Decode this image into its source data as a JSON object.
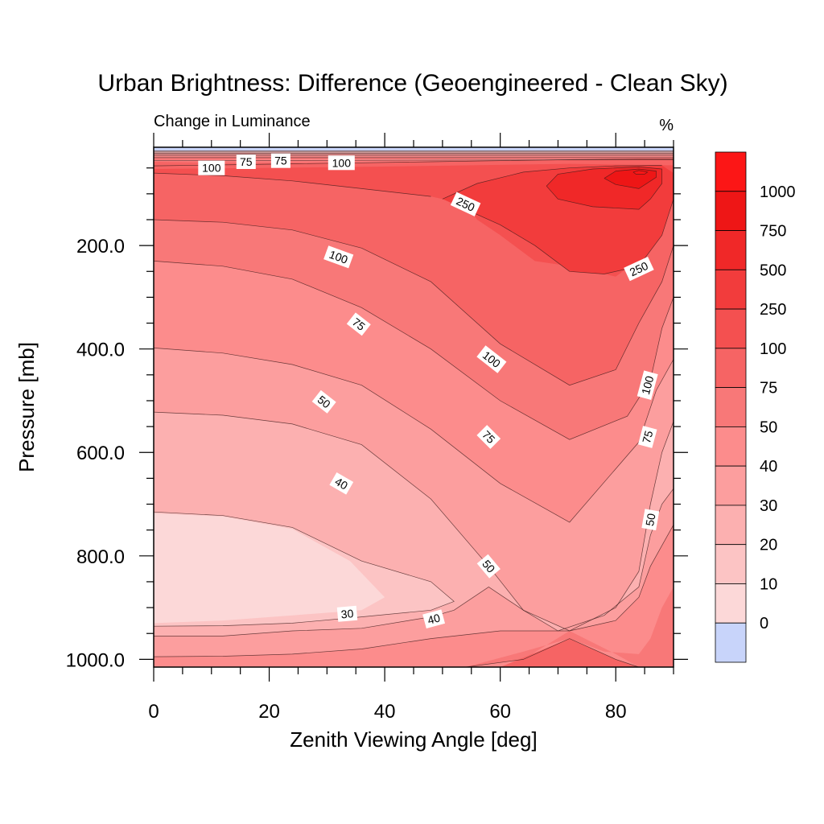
{
  "chart_data": {
    "type": "contour",
    "title": "Urban Brightness: Difference (Geoengineered - Clean Sky)",
    "subtitle_left": "Change in Luminance",
    "units": "%",
    "xlabel": "Zenith Viewing Angle [deg]",
    "ylabel": "Pressure [mb]",
    "xlim": [
      0,
      90
    ],
    "ylim": [
      1015,
      10
    ],
    "x_ticks": [
      0,
      20,
      40,
      60,
      80
    ],
    "x_tick_labels": [
      "0",
      "20",
      "40",
      "60",
      "80"
    ],
    "y_ticks": [
      200,
      400,
      600,
      800,
      1000
    ],
    "y_tick_labels": [
      "200.0",
      "400.0",
      "600.0",
      "800.0",
      "1000.0"
    ],
    "contour_levels": [
      0,
      10,
      20,
      30,
      40,
      50,
      75,
      100,
      250,
      500,
      750,
      1000
    ],
    "colorbar_labels": [
      "0",
      "10",
      "20",
      "30",
      "40",
      "50",
      "75",
      "100",
      "250",
      "500",
      "750",
      "1000"
    ],
    "colors": [
      "#c8d4fa",
      "#fcd8d8",
      "#fcc4c4",
      "#fcb0b0",
      "#fc9e9e",
      "#fc8c8c",
      "#f87878",
      "#f66464",
      "#f45050",
      "#f23c3c",
      "#f02828",
      "#ee1616",
      "#fc1616"
    ],
    "contour_line_labels": [
      {
        "text": "100",
        "x": 10,
        "p": 50,
        "angle": 0
      },
      {
        "text": "75",
        "x": 16,
        "p": 38,
        "angle": 0
      },
      {
        "text": "75",
        "x": 22,
        "p": 36,
        "angle": 0
      },
      {
        "text": "100",
        "x": 32.5,
        "p": 40,
        "angle": 0
      },
      {
        "text": "250",
        "x": 54,
        "p": 120,
        "angle": 25
      },
      {
        "text": "250",
        "x": 84,
        "p": 245,
        "angle": -25
      },
      {
        "text": "100",
        "x": 32,
        "p": 222,
        "angle": 20
      },
      {
        "text": "75",
        "x": 35.5,
        "p": 352,
        "angle": 38
      },
      {
        "text": "100",
        "x": 58.5,
        "p": 420,
        "angle": 38
      },
      {
        "text": "100",
        "x": 85.5,
        "p": 470,
        "angle": -75
      },
      {
        "text": "50",
        "x": 29.5,
        "p": 502,
        "angle": 38
      },
      {
        "text": "75",
        "x": 58,
        "p": 570,
        "angle": 45
      },
      {
        "text": "75",
        "x": 85.5,
        "p": 570,
        "angle": -75
      },
      {
        "text": "40",
        "x": 32.5,
        "p": 660,
        "angle": 30
      },
      {
        "text": "50",
        "x": 86,
        "p": 730,
        "angle": -80
      },
      {
        "text": "50",
        "x": 58,
        "p": 820,
        "angle": 50
      },
      {
        "text": "30",
        "x": 33.5,
        "p": 912,
        "angle": -5
      },
      {
        "text": "40",
        "x": 48.5,
        "p": 922,
        "angle": -15
      }
    ]
  }
}
